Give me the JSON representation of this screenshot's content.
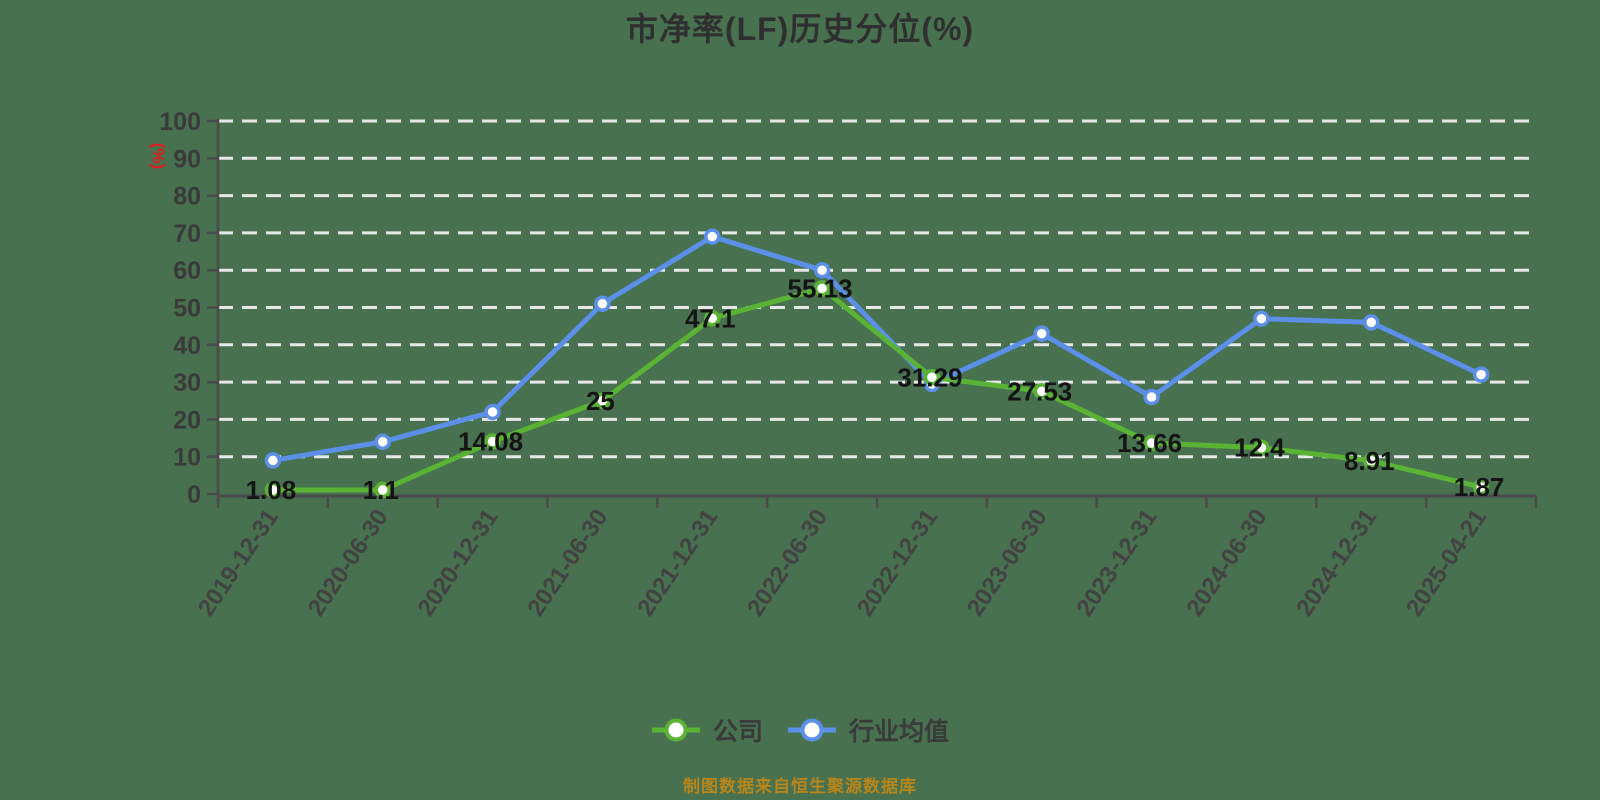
{
  "title": "市净率(LF)历史分位(%)",
  "y_axis_unit": "(%)",
  "footer_note": "制图数据来自恒生聚源数据库",
  "legend": [
    {
      "label": "公司",
      "color": "#5BB335"
    },
    {
      "label": "行业均值",
      "color": "#5B8FE8"
    }
  ],
  "colors": {
    "background": "#47714F",
    "grid": "#E8E8E8",
    "axis": "#4a4a4a",
    "tick_text": "#3a3a3a",
    "data_label": "#141414",
    "title_text": "#2f2f2f",
    "footer_text": "#B8861A",
    "unit_text": "#e01e1e",
    "marker_fill": "#ffffff"
  },
  "chart_data": {
    "type": "line",
    "title": "市净率(LF)历史分位(%)",
    "xlabel": "",
    "ylabel": "(%)",
    "ylim": [
      0,
      100
    ],
    "y_ticks": [
      0,
      10,
      20,
      30,
      40,
      50,
      60,
      70,
      80,
      90,
      100
    ],
    "grid": true,
    "grid_style": "dashed",
    "legend_position": "bottom",
    "categories": [
      "2019-12-31",
      "2020-06-30",
      "2020-12-31",
      "2021-06-30",
      "2021-12-31",
      "2022-06-30",
      "2022-12-31",
      "2023-06-30",
      "2023-12-31",
      "2024-06-30",
      "2024-12-31",
      "2025-04-21"
    ],
    "series": [
      {
        "name": "公司",
        "color": "#5BB335",
        "show_labels": true,
        "values": [
          1.08,
          1.1,
          14.08,
          25,
          47.1,
          55.13,
          31.29,
          27.53,
          13.66,
          12.4,
          8.91,
          1.87
        ]
      },
      {
        "name": "行业均值",
        "color": "#5B8FE8",
        "show_labels": false,
        "values": [
          9,
          14,
          22,
          51,
          69,
          60,
          29.5,
          43,
          26,
          47,
          46,
          32
        ]
      }
    ]
  }
}
